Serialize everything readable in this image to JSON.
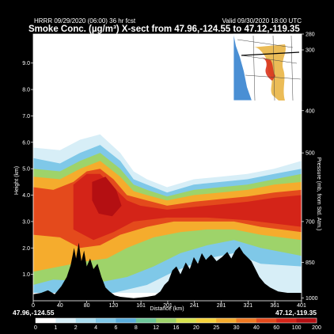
{
  "header": {
    "left": "HRRR 09/29/2020 (06:00) 36 hr fcst",
    "right": "Valid 09/30/2020 18:00 UTC"
  },
  "chart_data": {
    "type": "heatmap",
    "title": "Smoke Conc. (µg/m³) X-sect from 47.96,-124.55 to 47.12,-119.35",
    "xlabel": "Distance (km)",
    "ylabel_left": "Height (km)",
    "ylabel_right": "Pressure (mb, from Std. Atm.)",
    "x_ticks": [
      0,
      40,
      80,
      120,
      161,
      201,
      241,
      281,
      321,
      361,
      401
    ],
    "xlim": [
      0,
      401
    ],
    "y_ticks": [
      1.0,
      2.0,
      3.0,
      4.0,
      5.0,
      6.0,
      7.0,
      8.0,
      9.0
    ],
    "ylim": [
      0,
      10.1
    ],
    "pressure_ticks": [
      {
        "label": "280",
        "km": 10.1
      },
      {
        "label": "300",
        "km": 9.5
      },
      {
        "label": "400",
        "km": 7.2
      },
      {
        "label": "500",
        "km": 5.6
      },
      {
        "label": "700",
        "km": 3.0
      },
      {
        "label": "850",
        "km": 1.45
      },
      {
        "label": "1000",
        "km": 0.1
      }
    ],
    "start_point": "47.96,-124.55",
    "end_point": "47.12,-119.35",
    "colorbar": {
      "labels": [
        "0",
        "1",
        "2",
        "4",
        "6",
        "8",
        "12",
        "16",
        "20",
        "25",
        "30",
        "40",
        "60",
        "100",
        "200"
      ],
      "colors": [
        "#ffffff",
        "#d7eef7",
        "#a9dcef",
        "#7fc8e8",
        "#5aaedc",
        "#6dc79a",
        "#9ed36a",
        "#d7e24c",
        "#f6d23a",
        "#f5ac2d",
        "#f07a22",
        "#e44a1c",
        "#d42418",
        "#b40f12",
        "#9a2fc8"
      ]
    },
    "terrain_km": [
      [
        0,
        0.25
      ],
      [
        12,
        0.3
      ],
      [
        22,
        0.4
      ],
      [
        32,
        0.25
      ],
      [
        42,
        0.55
      ],
      [
        50,
        0.9
      ],
      [
        56,
        1.35
      ],
      [
        61,
        2.0
      ],
      [
        64,
        1.6
      ],
      [
        68,
        2.2
      ],
      [
        72,
        1.5
      ],
      [
        76,
        1.9
      ],
      [
        80,
        1.3
      ],
      [
        85,
        1.6
      ],
      [
        90,
        1.2
      ],
      [
        96,
        1.4
      ],
      [
        102,
        0.9
      ],
      [
        108,
        0.5
      ],
      [
        114,
        0.35
      ],
      [
        122,
        0.2
      ],
      [
        130,
        0.15
      ],
      [
        150,
        0.1
      ],
      [
        170,
        0.15
      ],
      [
        182,
        0.2
      ],
      [
        190,
        0.35
      ],
      [
        196,
        0.6
      ],
      [
        202,
        0.75
      ],
      [
        208,
        1.15
      ],
      [
        214,
        1.3
      ],
      [
        220,
        1.0
      ],
      [
        228,
        1.45
      ],
      [
        234,
        1.2
      ],
      [
        240,
        1.65
      ],
      [
        246,
        1.4
      ],
      [
        252,
        1.8
      ],
      [
        258,
        1.55
      ],
      [
        266,
        1.75
      ],
      [
        274,
        1.5
      ],
      [
        282,
        1.65
      ],
      [
        290,
        1.85
      ],
      [
        296,
        1.6
      ],
      [
        302,
        1.9
      ],
      [
        308,
        2.05
      ],
      [
        314,
        1.8
      ],
      [
        320,
        1.65
      ],
      [
        326,
        1.5
      ],
      [
        332,
        1.2
      ],
      [
        338,
        0.9
      ],
      [
        346,
        0.65
      ],
      [
        354,
        0.5
      ],
      [
        366,
        0.35
      ],
      [
        380,
        0.3
      ],
      [
        392,
        0.3
      ],
      [
        401,
        0.3
      ]
    ],
    "smoke_layers": [
      {
        "level": "1",
        "top": [
          [
            0,
            5.8
          ],
          [
            40,
            5.7
          ],
          [
            70,
            6.1
          ],
          [
            100,
            6.3
          ],
          [
            130,
            5.6
          ],
          [
            150,
            4.9
          ],
          [
            170,
            4.6
          ],
          [
            200,
            4.3
          ],
          [
            240,
            4.6
          ],
          [
            280,
            4.7
          ],
          [
            320,
            4.8
          ],
          [
            360,
            5.0
          ],
          [
            401,
            5.3
          ]
        ],
        "bottom": [
          [
            0,
            0.3
          ],
          [
            401,
            0.3
          ]
        ]
      },
      {
        "level": "4",
        "top": [
          [
            0,
            5.4
          ],
          [
            40,
            5.2
          ],
          [
            70,
            5.6
          ],
          [
            100,
            5.9
          ],
          [
            130,
            5.3
          ],
          [
            150,
            4.6
          ],
          [
            170,
            4.4
          ],
          [
            200,
            4.1
          ],
          [
            240,
            4.4
          ],
          [
            280,
            4.5
          ],
          [
            320,
            4.6
          ],
          [
            360,
            4.8
          ],
          [
            401,
            5.0
          ]
        ],
        "bottom": [
          [
            0,
            0.3
          ],
          [
            120,
            0.3
          ],
          [
            170,
            0.6
          ],
          [
            210,
            1.1
          ],
          [
            260,
            1.6
          ],
          [
            300,
            1.8
          ],
          [
            340,
            1.4
          ],
          [
            401,
            1.3
          ]
        ]
      },
      {
        "level": "12",
        "top": [
          [
            0,
            5.0
          ],
          [
            40,
            4.9
          ],
          [
            70,
            5.3
          ],
          [
            100,
            5.6
          ],
          [
            130,
            5.0
          ],
          [
            150,
            4.4
          ],
          [
            170,
            4.2
          ],
          [
            200,
            3.95
          ],
          [
            240,
            4.2
          ],
          [
            280,
            4.3
          ],
          [
            320,
            4.4
          ],
          [
            360,
            4.6
          ],
          [
            401,
            4.8
          ]
        ],
        "bottom": [
          [
            0,
            0.6
          ],
          [
            30,
            0.8
          ],
          [
            100,
            0.7
          ],
          [
            140,
            0.9
          ],
          [
            180,
            1.3
          ],
          [
            220,
            1.8
          ],
          [
            260,
            2.1
          ],
          [
            300,
            2.3
          ],
          [
            340,
            2.0
          ],
          [
            401,
            1.7
          ]
        ]
      },
      {
        "level": "25",
        "top": [
          [
            0,
            4.7
          ],
          [
            40,
            4.6
          ],
          [
            70,
            5.0
          ],
          [
            100,
            5.3
          ],
          [
            130,
            4.7
          ],
          [
            150,
            4.15
          ],
          [
            170,
            4.0
          ],
          [
            200,
            3.8
          ],
          [
            240,
            4.0
          ],
          [
            280,
            4.1
          ],
          [
            320,
            4.2
          ],
          [
            360,
            4.4
          ],
          [
            401,
            4.5
          ]
        ],
        "bottom": [
          [
            0,
            1.1
          ],
          [
            40,
            1.3
          ],
          [
            80,
            1.5
          ],
          [
            110,
            1.6
          ],
          [
            140,
            2.0
          ],
          [
            180,
            2.4
          ],
          [
            220,
            2.6
          ],
          [
            260,
            2.7
          ],
          [
            300,
            2.7
          ],
          [
            340,
            2.5
          ],
          [
            401,
            2.3
          ]
        ]
      },
      {
        "level": "40",
        "top": [
          [
            0,
            4.3
          ],
          [
            30,
            4.2
          ],
          [
            60,
            4.5
          ],
          [
            80,
            4.9
          ],
          [
            100,
            5.0
          ],
          [
            120,
            4.6
          ],
          [
            140,
            4.0
          ],
          [
            170,
            3.8
          ],
          [
            200,
            3.6
          ],
          [
            240,
            3.75
          ],
          [
            280,
            3.85
          ],
          [
            320,
            3.95
          ],
          [
            360,
            4.1
          ],
          [
            401,
            4.2
          ]
        ],
        "bottom": [
          [
            0,
            2.5
          ],
          [
            40,
            2.4
          ],
          [
            70,
            2.0
          ],
          [
            100,
            2.1
          ],
          [
            130,
            2.5
          ],
          [
            170,
            2.8
          ],
          [
            210,
            3.0
          ],
          [
            260,
            3.0
          ],
          [
            300,
            3.0
          ],
          [
            340,
            2.8
          ],
          [
            401,
            2.6
          ]
        ]
      },
      {
        "level": "60",
        "top": [
          [
            60,
            4.4
          ],
          [
            80,
            4.8
          ],
          [
            100,
            4.8
          ],
          [
            120,
            4.3
          ],
          [
            140,
            3.8
          ],
          [
            160,
            3.6
          ],
          [
            200,
            3.45
          ],
          [
            240,
            3.55
          ],
          [
            280,
            3.65
          ],
          [
            320,
            3.75
          ],
          [
            360,
            3.9
          ],
          [
            401,
            4.0
          ]
        ],
        "bottom": [
          [
            60,
            2.7
          ],
          [
            90,
            2.3
          ],
          [
            120,
            2.6
          ],
          [
            150,
            3.0
          ],
          [
            200,
            3.15
          ],
          [
            260,
            3.15
          ],
          [
            320,
            3.05
          ],
          [
            401,
            2.8
          ]
        ]
      },
      {
        "level": "100",
        "top": [
          [
            88,
            4.5
          ],
          [
            108,
            4.7
          ],
          [
            124,
            4.2
          ],
          [
            132,
            3.6
          ],
          [
            118,
            3.2
          ],
          [
            98,
            3.3
          ],
          [
            88,
            3.8
          ]
        ],
        "bottom": null
      }
    ],
    "grid": false,
    "inset_map": true
  }
}
